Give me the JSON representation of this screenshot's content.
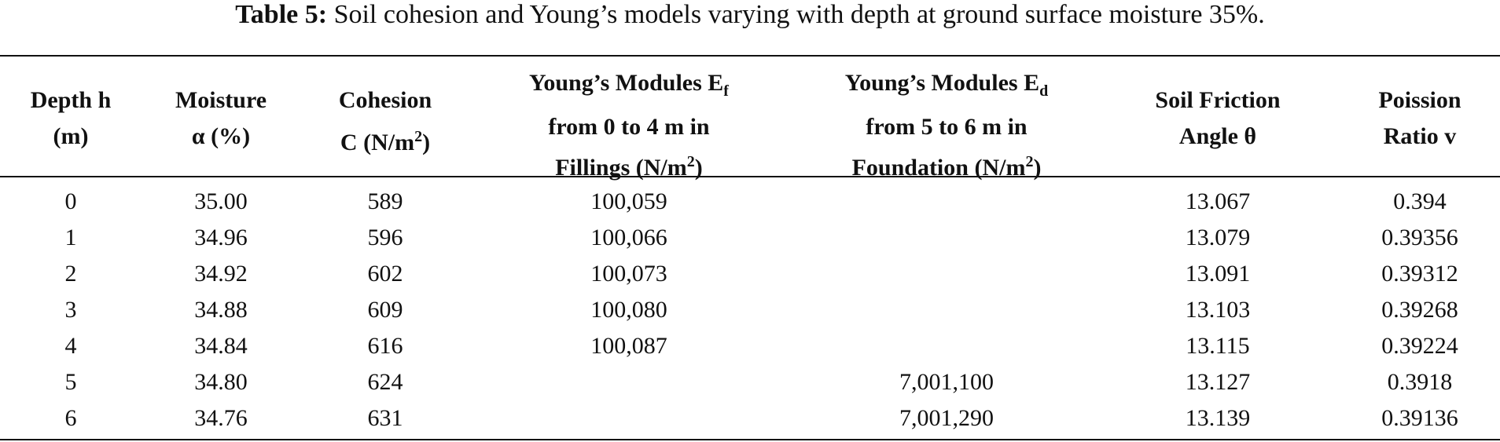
{
  "title": {
    "label": "Table 5:",
    "text": "Soil cohesion and Young’s models varying with depth at ground surface moisture 35%."
  },
  "table": {
    "headers": [
      [
        "Depth h",
        "(m)"
      ],
      [
        "Moisture",
        "α (%)"
      ],
      [
        "Cohesion",
        "C (N/m",
        "2",
        ")"
      ],
      [
        "Young’s Modules E",
        "f",
        "from 0 to 4 m in",
        "Fillings (N/m",
        "2",
        ")"
      ],
      [
        "Young’s Modules E",
        "d",
        "from 5 to 6 m in",
        "Foundation (N/m",
        "2",
        ")"
      ],
      [
        "Soil Friction",
        "Angle θ"
      ],
      [
        "Poission",
        "Ratio v"
      ]
    ],
    "rows": [
      [
        "0",
        "35.00",
        "589",
        "100,059",
        null,
        "13.067",
        "0.394"
      ],
      [
        "1",
        "34.96",
        "596",
        "100,066",
        null,
        "13.079",
        "0.39356"
      ],
      [
        "2",
        "34.92",
        "602",
        "100,073",
        null,
        "13.091",
        "0.39312"
      ],
      [
        "3",
        "34.88",
        "609",
        "100,080",
        null,
        "13.103",
        "0.39268"
      ],
      [
        "4",
        "34.84",
        "616",
        "100,087",
        null,
        "13.115",
        "0.39224"
      ],
      [
        "5",
        "34.80",
        "624",
        null,
        "7,001,100",
        "13.127",
        "0.3918"
      ],
      [
        "6",
        "34.76",
        "631",
        null,
        "7,001,290",
        "13.139",
        "0.39136"
      ]
    ]
  }
}
